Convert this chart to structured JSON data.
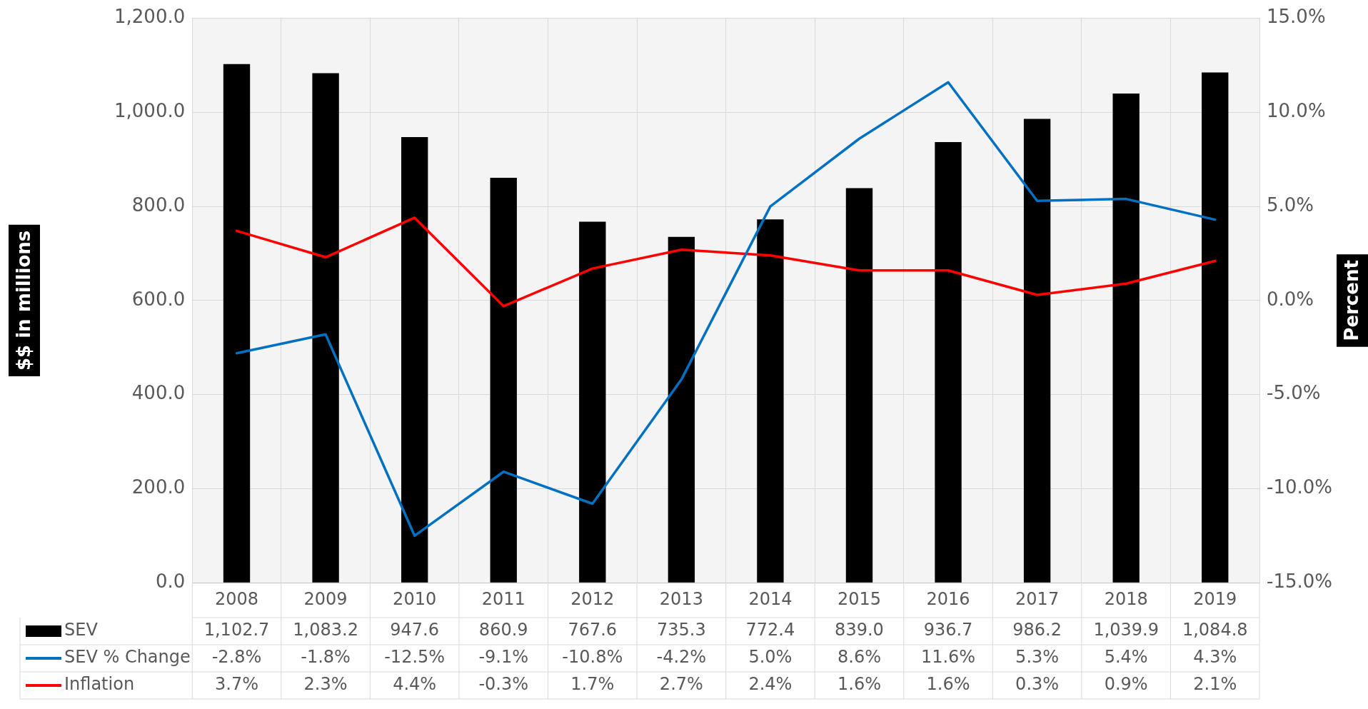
{
  "chart_data": {
    "type": "bar",
    "categories": [
      "2008",
      "2009",
      "2010",
      "2011",
      "2012",
      "2013",
      "2014",
      "2015",
      "2016",
      "2017",
      "2018",
      "2019"
    ],
    "series": [
      {
        "name": "SEV",
        "color": "#000000",
        "values": [
          1102.7,
          1083.2,
          947.6,
          860.9,
          767.6,
          735.3,
          772.4,
          839.0,
          936.7,
          986.2,
          1039.9,
          1084.8
        ],
        "value_labels": [
          "1,102.7",
          "1,083.2",
          "947.6",
          "860.9",
          "767.6",
          "735.3",
          "772.4",
          "839.0",
          "936.7",
          "986.2",
          "1,039.9",
          "1,084.8"
        ]
      },
      {
        "name": "SEV % Change",
        "type": "line",
        "axis": "y2",
        "color": "#0070c0",
        "values": [
          -2.8,
          -1.8,
          -12.5,
          -9.1,
          -10.8,
          -4.2,
          5.0,
          8.6,
          11.6,
          5.3,
          5.4,
          4.3
        ],
        "value_labels": [
          "-2.8%",
          "-1.8%",
          "-12.5%",
          "-9.1%",
          "-10.8%",
          "-4.2%",
          "5.0%",
          "8.6%",
          "11.6%",
          "5.3%",
          "5.4%",
          "4.3%"
        ]
      },
      {
        "name": "Inflation",
        "type": "line",
        "axis": "y2",
        "color": "#ff0000",
        "values": [
          3.7,
          2.3,
          4.4,
          -0.3,
          1.7,
          2.7,
          2.4,
          1.6,
          1.6,
          0.3,
          0.9,
          2.1
        ],
        "value_labels": [
          "3.7%",
          "2.3%",
          "4.4%",
          "-0.3%",
          "1.7%",
          "2.7%",
          "2.4%",
          "1.6%",
          "1.6%",
          "0.3%",
          "0.9%",
          "2.1%"
        ]
      }
    ],
    "ylabel": "$$ in millions",
    "y2label": "Percent",
    "ylim": [
      0,
      1200
    ],
    "yticks": [
      {
        "value": 0,
        "label": "0.0"
      },
      {
        "value": 200,
        "label": "200.0"
      },
      {
        "value": 400,
        "label": "400.0"
      },
      {
        "value": 600,
        "label": "600.0"
      },
      {
        "value": 800,
        "label": "800.0"
      },
      {
        "value": 1000,
        "label": "1,000.0"
      },
      {
        "value": 1200,
        "label": "1,200.0"
      }
    ],
    "y2lim": [
      -15,
      15
    ],
    "y2ticks": [
      {
        "value": -15,
        "label": "-15.0%"
      },
      {
        "value": -10,
        "label": "-10.0%"
      },
      {
        "value": -5,
        "label": "-5.0%"
      },
      {
        "value": 0,
        "label": "0.0%"
      },
      {
        "value": 5,
        "label": "5.0%"
      },
      {
        "value": 10,
        "label": "10.0%"
      },
      {
        "value": 15,
        "label": "15.0%"
      }
    ],
    "grid": true,
    "legend": "bottom",
    "marker": "none"
  }
}
